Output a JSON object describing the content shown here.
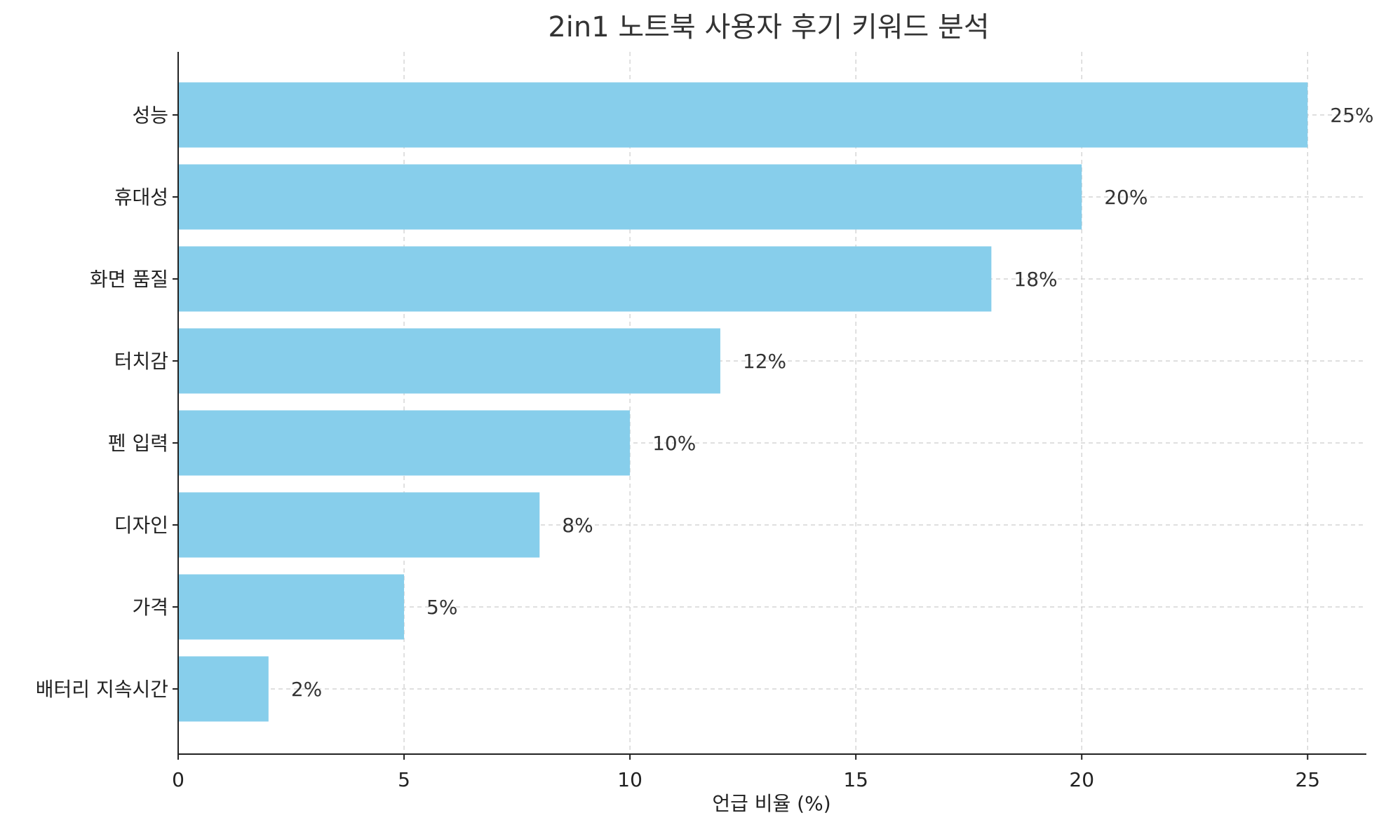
{
  "chart_data": {
    "type": "bar",
    "orientation": "horizontal",
    "title": "2in1 노트북 사용자 후기 키워드 분석",
    "xlabel": "언급 비율 (%)",
    "ylabel": "",
    "categories": [
      "성능",
      "휴대성",
      "화면 품질",
      "터치감",
      "펜 입력",
      "디자인",
      "가격",
      "배터리 지속시간"
    ],
    "values": [
      25,
      20,
      18,
      12,
      10,
      8,
      5,
      2
    ],
    "value_labels": [
      "25%",
      "20%",
      "18%",
      "12%",
      "10%",
      "8%",
      "5%",
      "2%"
    ],
    "xlim": [
      0,
      26.3
    ],
    "xticks": [
      0,
      5,
      10,
      15,
      20,
      25
    ],
    "xtick_labels": [
      "0",
      "5",
      "10",
      "15",
      "20",
      "25"
    ],
    "grid": true,
    "bar_color": "#87ceeb"
  }
}
